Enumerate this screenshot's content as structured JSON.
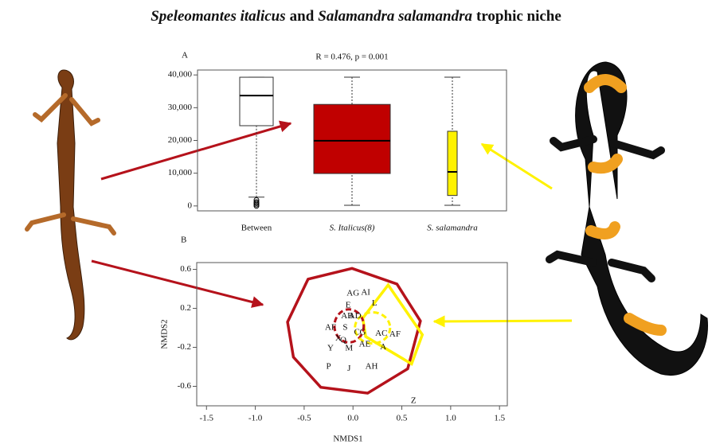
{
  "figure": {
    "title_segments": [
      {
        "text": "Speleomantes italicus",
        "italic": true
      },
      {
        "text": "and",
        "italic": false
      },
      {
        "text": "Salamandra salamandra",
        "italic": true
      },
      {
        "text": "trophic niche",
        "italic": false
      }
    ]
  },
  "chart_data": [
    {
      "type": "box",
      "panel_label": "A",
      "annotation": "R = 0.476, p = 0.001",
      "categories": [
        "Between",
        "S. Italicus(8)",
        "S. salamandra"
      ],
      "category_italic": [
        false,
        true,
        true
      ],
      "colors": [
        "#ffffff",
        "#c00000",
        "#fff200"
      ],
      "min": [
        2700,
        200,
        200
      ],
      "q1": [
        24500,
        9900,
        3200
      ],
      "median": [
        33700,
        19900,
        10400
      ],
      "q3": [
        39300,
        31000,
        22800
      ],
      "max": [
        39300,
        39300,
        39300
      ],
      "outliers": [
        [
          0,
          400,
          800,
          1200,
          1800
        ],
        [],
        []
      ],
      "ylim": [
        -1500,
        41500
      ],
      "yticks": [
        0,
        {
          "value": 10000,
          "label": "10,000"
        },
        {
          "value": 20000,
          "label": "20,000"
        },
        {
          "value": 30000,
          "label": "30,000"
        },
        {
          "value": 40000,
          "label": "40,000"
        }
      ]
    },
    {
      "type": "scatter",
      "panel_label": "B",
      "xlabel": "NMDS1",
      "ylabel": "NMDS2",
      "xlim": [
        -1.6,
        1.58
      ],
      "ylim": [
        -0.8,
        0.67
      ],
      "xticks": [
        -1.5,
        {
          "value": -1.0,
          "label": "-1.0"
        },
        -0.5,
        {
          "value": 0,
          "label": "0.0"
        },
        0.5,
        {
          "value": 1.0,
          "label": "1.0"
        },
        1.5
      ],
      "yticks": [
        -0.6,
        -0.2,
        0.2,
        0.6
      ],
      "labels": [
        "AG",
        "AI",
        "E",
        "L",
        "AB",
        "AD",
        "AF",
        "S",
        "C",
        "G",
        "X",
        "Q",
        "AC",
        "AF",
        "AE",
        "A",
        "Y",
        "M",
        "P",
        "J",
        "AH",
        "Z"
      ],
      "x": [
        0.0,
        0.13,
        -0.05,
        0.22,
        -0.06,
        0.02,
        -0.23,
        -0.08,
        0.04,
        0.1,
        -0.15,
        -0.1,
        0.29,
        0.43,
        0.12,
        0.31,
        -0.23,
        -0.04,
        -0.25,
        -0.04,
        0.19,
        0.62
      ],
      "y": [
        0.35,
        0.36,
        0.23,
        0.25,
        0.12,
        0.12,
        0.0,
        0.0,
        -0.05,
        -0.05,
        -0.11,
        -0.13,
        -0.06,
        -0.07,
        -0.17,
        -0.2,
        -0.21,
        -0.21,
        -0.4,
        -0.42,
        -0.4,
        -0.75
      ],
      "hulls": [
        {
          "color": "#b5121b",
          "x": [
            -0.46,
            -0.01,
            0.45,
            0.69,
            0.56,
            0.15,
            -0.33,
            -0.61,
            -0.67
          ],
          "y": [
            0.5,
            0.61,
            0.45,
            0.07,
            -0.42,
            -0.67,
            -0.61,
            -0.3,
            0.06
          ]
        },
        {
          "color": "#fff200",
          "x": [
            0.36,
            0.71,
            0.6,
            0.13,
            0.1
          ],
          "y": [
            0.44,
            -0.07,
            -0.37,
            -0.09,
            0.1
          ]
        }
      ],
      "ellipses": [
        {
          "color": "#b5121b",
          "cx": -0.04,
          "cy": 0.02,
          "rx": 0.15,
          "ry": 0.17
        },
        {
          "color": "#fff200",
          "cx": 0.2,
          "cy": 0.0,
          "rx": 0.18,
          "ry": 0.16
        }
      ]
    }
  ]
}
